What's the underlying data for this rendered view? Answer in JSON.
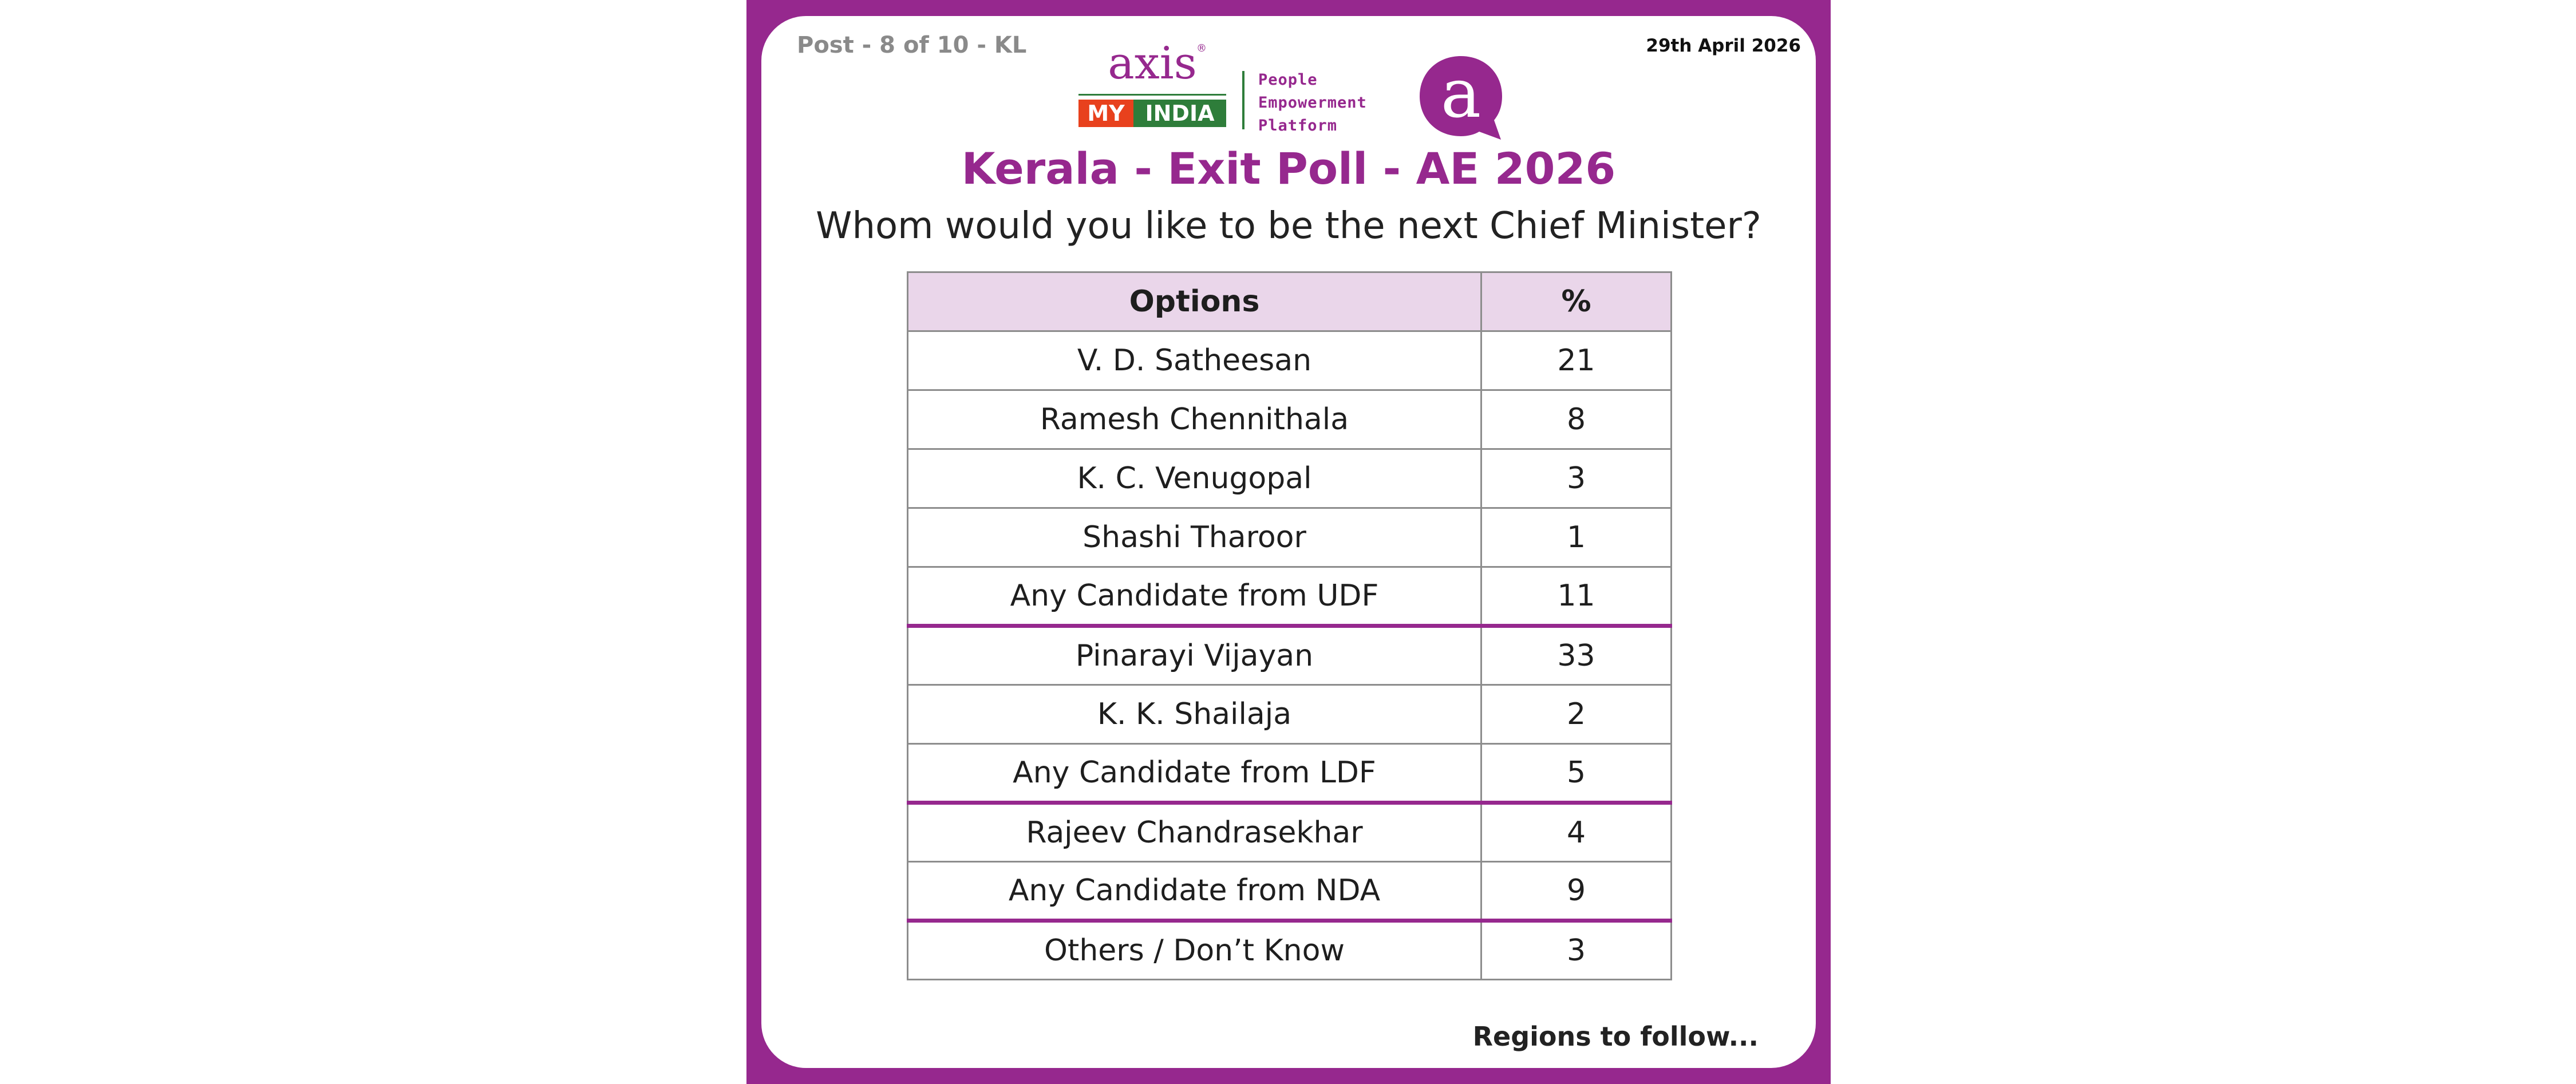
{
  "header": {
    "post_label": "Post - 8 of 10 - KL",
    "date": "29th April 2026"
  },
  "logo": {
    "brand_word": "axis",
    "registered_mark": "®",
    "my": "MY",
    "india": "INDIA",
    "tagline_lines": [
      "People",
      "Empowerment",
      "Platform"
    ],
    "emblem_letter": "a",
    "colors": {
      "purple": "#96288e",
      "green": "#2e7d3a",
      "orange": "#e8411d"
    }
  },
  "title": "Kerala - Exit Poll - AE 2026",
  "question": "Whom would you like to be the next Chief Minister?",
  "table": {
    "headers": [
      "Options",
      "%"
    ],
    "rows": [
      {
        "option": "V. D. Satheesan",
        "percent": "21"
      },
      {
        "option": "Ramesh Chennithala",
        "percent": "8"
      },
      {
        "option": "K. C. Venugopal",
        "percent": "3"
      },
      {
        "option": "Shashi Tharoor",
        "percent": "1"
      },
      {
        "option": "Any Candidate from UDF",
        "percent": "11"
      },
      {
        "option": "Pinarayi Vijayan",
        "percent": "33"
      },
      {
        "option": "K. K. Shailaja",
        "percent": "2"
      },
      {
        "option": "Any Candidate from LDF",
        "percent": "5"
      },
      {
        "option": "Rajeev Chandrasekhar",
        "percent": "4"
      },
      {
        "option": "Any Candidate from NDA",
        "percent": "9"
      },
      {
        "option": "Others / Don’t Know",
        "percent": "3"
      }
    ],
    "group_separator_color": "#96288e",
    "header_bg": "#ead6ea"
  },
  "footer": "Regions to follow..."
}
